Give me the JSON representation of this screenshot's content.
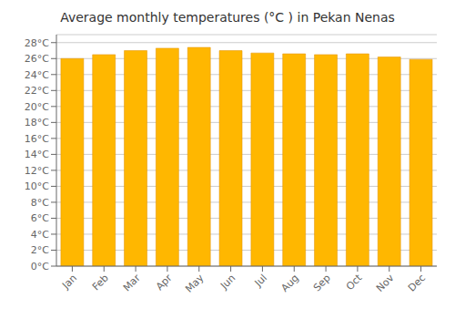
{
  "chart_data": {
    "type": "bar",
    "title": "Average monthly temperatures (°C ) in Pekan Nenas",
    "categories": [
      "Jan",
      "Feb",
      "Mar",
      "Apr",
      "May",
      "Jun",
      "Jul",
      "Aug",
      "Sep",
      "Oct",
      "Nov",
      "Dec"
    ],
    "values": [
      26.0,
      26.5,
      27.0,
      27.3,
      27.4,
      27.0,
      26.7,
      26.6,
      26.5,
      26.6,
      26.2,
      25.9
    ],
    "color": "#FFB700",
    "ylim": [
      0,
      29
    ],
    "yticks": [
      {
        "value": 0,
        "label": "0°C"
      },
      {
        "value": 2,
        "label": "2°C"
      },
      {
        "value": 4,
        "label": "4°C"
      },
      {
        "value": 6,
        "label": "6°C"
      },
      {
        "value": 8,
        "label": "8°C"
      },
      {
        "value": 10,
        "label": "10°C"
      },
      {
        "value": 12,
        "label": "12°C"
      },
      {
        "value": 14,
        "label": "14°C"
      },
      {
        "value": 16,
        "label": "16°C"
      },
      {
        "value": 18,
        "label": "18°C"
      },
      {
        "value": 20,
        "label": "20°C"
      },
      {
        "value": 22,
        "label": "22°C"
      },
      {
        "value": 24,
        "label": "24°C"
      },
      {
        "value": 26,
        "label": "26°C"
      },
      {
        "value": 28,
        "label": "28°C"
      }
    ],
    "grid": true
  }
}
